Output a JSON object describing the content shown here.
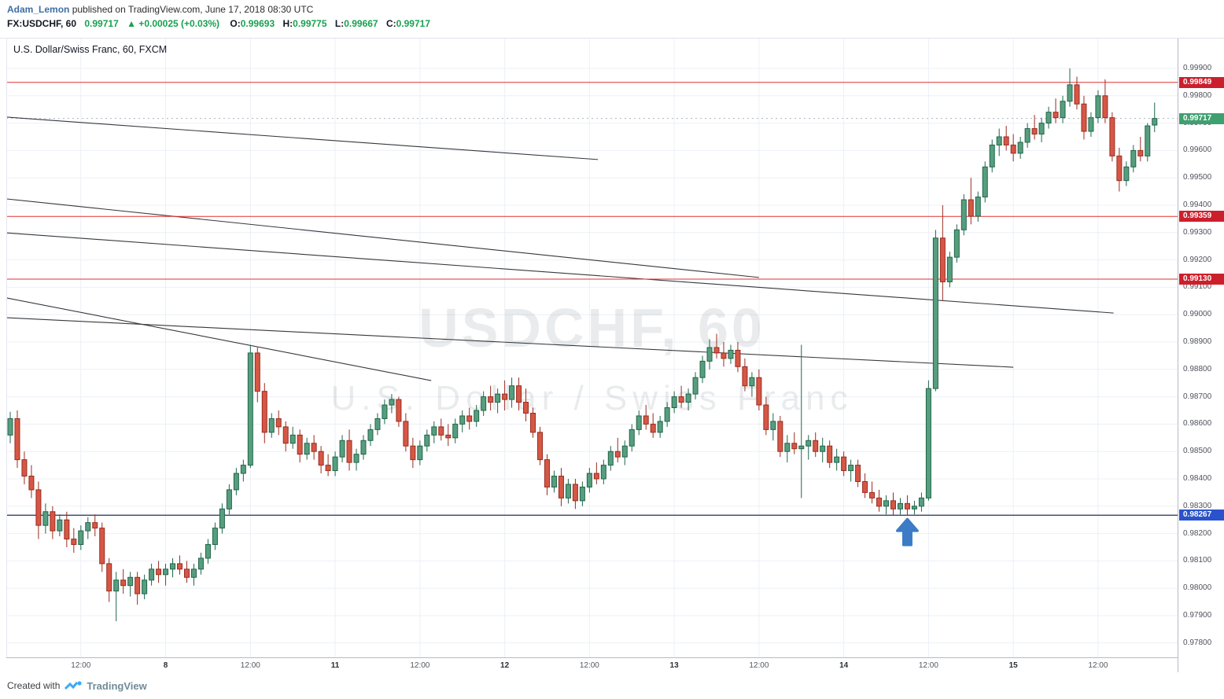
{
  "header": {
    "author": "Adam_Lemon",
    "published_text": " published on TradingView.com, June 17, 2018 08:30 UTC",
    "symbol": "FX:USDCHF, 60",
    "last_price": "0.99717",
    "change_text": "▲ +0.00025 (+0.03%)",
    "ohlc": {
      "o_label": "O:",
      "o": "0.99693",
      "h_label": "H:",
      "h": "0.99775",
      "l_label": "L:",
      "l": "0.99667",
      "c_label": "C:",
      "c": "0.99717"
    }
  },
  "legend": "U.S. Dollar/Swiss Franc, 60, FXCM",
  "watermark": {
    "line1": "USDCHF, 60",
    "line2": "U.S. Dollar / Swiss Franc"
  },
  "footer": {
    "created_with": "Created with",
    "brand": "TradingView"
  },
  "colors": {
    "up_body": "#579e7e",
    "up_border": "#20654a",
    "down_body": "#d65745",
    "down_border": "#992c20",
    "grid": "#ecf0f6",
    "trendline": "#37383c",
    "level_red": "#e03232",
    "level_blue": "#1d2f5f",
    "label_red_bg": "#cc1f2c",
    "label_blue_bg": "#2a52cc",
    "label_green_bg": "#3fa06f",
    "arrow": "#3c7bc6",
    "watermark": "rgba(100,110,122,0.14)",
    "green_text": "#18a150",
    "link_blue": "#3b6ea5"
  },
  "chart_data": {
    "type": "candlestick",
    "title": "U.S. Dollar/Swiss Franc, 60, FXCM",
    "symbol": "USDCHF",
    "interval": "60",
    "exchange": "FXCM",
    "price_axis": {
      "top": 0.999,
      "bottom": 0.978,
      "step": 0.001
    },
    "time_labels": [
      {
        "text": "12:00",
        "index": 10,
        "date": false
      },
      {
        "text": "8",
        "index": 22,
        "date": true
      },
      {
        "text": "12:00",
        "index": 34,
        "date": false
      },
      {
        "text": "11",
        "index": 46,
        "date": true
      },
      {
        "text": "12:00",
        "index": 58,
        "date": false
      },
      {
        "text": "12",
        "index": 70,
        "date": true
      },
      {
        "text": "12:00",
        "index": 82,
        "date": false
      },
      {
        "text": "13",
        "index": 94,
        "date": true
      },
      {
        "text": "12:00",
        "index": 106,
        "date": false
      },
      {
        "text": "14",
        "index": 118,
        "date": true
      },
      {
        "text": "12:00",
        "index": 130,
        "date": false
      },
      {
        "text": "15",
        "index": 142,
        "date": true
      },
      {
        "text": "12:00",
        "index": 154,
        "date": false
      }
    ],
    "levels": [
      {
        "price": 0.99849,
        "style": "red"
      },
      {
        "price": 0.99359,
        "style": "red"
      },
      {
        "price": 0.9913,
        "style": "red"
      },
      {
        "price": 0.98267,
        "style": "blue"
      }
    ],
    "last_price": 0.99717,
    "trendlines": [
      [
        -0.5,
        0.99722,
        83.2,
        0.99567
      ],
      [
        -0.5,
        0.99423,
        106.0,
        0.99136
      ],
      [
        -0.5,
        0.99299,
        156.2,
        0.99006
      ],
      [
        -0.5,
        0.99061,
        59.6,
        0.98759
      ],
      [
        -0.5,
        0.98989,
        142.0,
        0.98808
      ]
    ],
    "arrow": {
      "index": 127,
      "tip_price": 0.98253
    },
    "candles": [
      [
        0.9856,
        0.98645,
        0.9853,
        0.9862
      ],
      [
        0.9862,
        0.9865,
        0.9844,
        0.9847
      ],
      [
        0.9847,
        0.985,
        0.9838,
        0.9841
      ],
      [
        0.9841,
        0.9845,
        0.9833,
        0.9836
      ],
      [
        0.9836,
        0.9839,
        0.9818,
        0.9823
      ],
      [
        0.9823,
        0.9831,
        0.982,
        0.9828
      ],
      [
        0.9828,
        0.983,
        0.9818,
        0.9821
      ],
      [
        0.9821,
        0.9827,
        0.9819,
        0.9825
      ],
      [
        0.9825,
        0.9828,
        0.9815,
        0.9818
      ],
      [
        0.9818,
        0.9822,
        0.9813,
        0.9816
      ],
      [
        0.9816,
        0.9823,
        0.9814,
        0.9821
      ],
      [
        0.9821,
        0.9826,
        0.9818,
        0.9824
      ],
      [
        0.9824,
        0.9827,
        0.9819,
        0.9822
      ],
      [
        0.9822,
        0.9824,
        0.9806,
        0.9809
      ],
      [
        0.9809,
        0.9811,
        0.9795,
        0.9799
      ],
      [
        0.9799,
        0.9806,
        0.9788,
        0.9803
      ],
      [
        0.9803,
        0.9807,
        0.9798,
        0.9801
      ],
      [
        0.9801,
        0.9806,
        0.9797,
        0.9804
      ],
      [
        0.9804,
        0.9806,
        0.9794,
        0.9798
      ],
      [
        0.9798,
        0.9805,
        0.9796,
        0.9803
      ],
      [
        0.9803,
        0.9809,
        0.9801,
        0.9807
      ],
      [
        0.9807,
        0.981,
        0.9802,
        0.9805
      ],
      [
        0.9805,
        0.9809,
        0.9801,
        0.9807
      ],
      [
        0.9807,
        0.9811,
        0.9804,
        0.9809
      ],
      [
        0.9809,
        0.9812,
        0.9805,
        0.9807
      ],
      [
        0.9807,
        0.981,
        0.9802,
        0.9804
      ],
      [
        0.9804,
        0.9809,
        0.9801,
        0.9807
      ],
      [
        0.9807,
        0.9813,
        0.9805,
        0.9811
      ],
      [
        0.9811,
        0.9818,
        0.9809,
        0.9816
      ],
      [
        0.9816,
        0.9824,
        0.9814,
        0.9822
      ],
      [
        0.9822,
        0.9831,
        0.982,
        0.9829
      ],
      [
        0.9829,
        0.9838,
        0.9827,
        0.9836
      ],
      [
        0.9836,
        0.9844,
        0.9834,
        0.9842
      ],
      [
        0.9842,
        0.9847,
        0.9839,
        0.9845
      ],
      [
        0.9845,
        0.9889,
        0.9844,
        0.9886
      ],
      [
        0.9886,
        0.9888,
        0.9868,
        0.9872
      ],
      [
        0.9872,
        0.9875,
        0.9853,
        0.9857
      ],
      [
        0.9857,
        0.9864,
        0.9855,
        0.9862
      ],
      [
        0.9862,
        0.9865,
        0.9856,
        0.9859
      ],
      [
        0.9859,
        0.9861,
        0.985,
        0.9853
      ],
      [
        0.9853,
        0.9859,
        0.9851,
        0.9856
      ],
      [
        0.9856,
        0.9858,
        0.9846,
        0.9849
      ],
      [
        0.9849,
        0.9855,
        0.9847,
        0.9853
      ],
      [
        0.9853,
        0.9856,
        0.9847,
        0.985
      ],
      [
        0.985,
        0.9852,
        0.9842,
        0.9845
      ],
      [
        0.9845,
        0.9849,
        0.9841,
        0.9843
      ],
      [
        0.9843,
        0.985,
        0.9841,
        0.9848
      ],
      [
        0.9848,
        0.9856,
        0.9846,
        0.9854
      ],
      [
        0.9854,
        0.9858,
        0.9843,
        0.9846
      ],
      [
        0.9846,
        0.9851,
        0.9843,
        0.9849
      ],
      [
        0.9849,
        0.9856,
        0.9847,
        0.9854
      ],
      [
        0.9854,
        0.986,
        0.9852,
        0.9858
      ],
      [
        0.9858,
        0.9864,
        0.9856,
        0.9862
      ],
      [
        0.9862,
        0.9869,
        0.986,
        0.9867
      ],
      [
        0.9867,
        0.9871,
        0.9864,
        0.9869
      ],
      [
        0.9869,
        0.987,
        0.9859,
        0.9861
      ],
      [
        0.9861,
        0.9864,
        0.985,
        0.9852
      ],
      [
        0.9852,
        0.9855,
        0.9844,
        0.9847
      ],
      [
        0.9847,
        0.9854,
        0.9845,
        0.9852
      ],
      [
        0.9852,
        0.9858,
        0.985,
        0.9856
      ],
      [
        0.9856,
        0.9861,
        0.9853,
        0.9859
      ],
      [
        0.9859,
        0.9862,
        0.9854,
        0.9856
      ],
      [
        0.9856,
        0.986,
        0.9852,
        0.9855
      ],
      [
        0.9855,
        0.9862,
        0.9853,
        0.986
      ],
      [
        0.986,
        0.9865,
        0.9857,
        0.9863
      ],
      [
        0.9863,
        0.9866,
        0.9858,
        0.9861
      ],
      [
        0.9861,
        0.9867,
        0.9859,
        0.9865
      ],
      [
        0.9865,
        0.9872,
        0.9863,
        0.987
      ],
      [
        0.987,
        0.9874,
        0.9865,
        0.9868
      ],
      [
        0.9868,
        0.9873,
        0.9864,
        0.9871
      ],
      [
        0.9871,
        0.9876,
        0.9865,
        0.9869
      ],
      [
        0.9869,
        0.9877,
        0.9866,
        0.9874
      ],
      [
        0.9874,
        0.9877,
        0.9865,
        0.9868
      ],
      [
        0.9868,
        0.9873,
        0.9861,
        0.9864
      ],
      [
        0.9864,
        0.9866,
        0.9855,
        0.9857
      ],
      [
        0.9857,
        0.9859,
        0.9845,
        0.9847
      ],
      [
        0.9847,
        0.9849,
        0.9834,
        0.9837
      ],
      [
        0.9837,
        0.9843,
        0.9835,
        0.9841
      ],
      [
        0.9841,
        0.9844,
        0.983,
        0.9833
      ],
      [
        0.9833,
        0.984,
        0.9831,
        0.9838
      ],
      [
        0.9838,
        0.984,
        0.9829,
        0.9832
      ],
      [
        0.9832,
        0.9839,
        0.983,
        0.9837
      ],
      [
        0.9837,
        0.9844,
        0.9835,
        0.9842
      ],
      [
        0.9842,
        0.9846,
        0.9838,
        0.984
      ],
      [
        0.984,
        0.9847,
        0.9838,
        0.9845
      ],
      [
        0.9845,
        0.9852,
        0.9843,
        0.985
      ],
      [
        0.985,
        0.9855,
        0.9846,
        0.9848
      ],
      [
        0.9848,
        0.9854,
        0.9845,
        0.9852
      ],
      [
        0.9852,
        0.986,
        0.985,
        0.9858
      ],
      [
        0.9858,
        0.9865,
        0.9856,
        0.9863
      ],
      [
        0.9863,
        0.9867,
        0.9858,
        0.986
      ],
      [
        0.986,
        0.9864,
        0.9855,
        0.9857
      ],
      [
        0.9857,
        0.9863,
        0.9855,
        0.9861
      ],
      [
        0.9861,
        0.9868,
        0.9859,
        0.9866
      ],
      [
        0.9866,
        0.9872,
        0.9864,
        0.987
      ],
      [
        0.987,
        0.9874,
        0.9866,
        0.9868
      ],
      [
        0.9868,
        0.9873,
        0.9865,
        0.9871
      ],
      [
        0.9871,
        0.9879,
        0.9869,
        0.9877
      ],
      [
        0.9877,
        0.9885,
        0.9875,
        0.9883
      ],
      [
        0.9883,
        0.9891,
        0.988,
        0.9888
      ],
      [
        0.9888,
        0.9893,
        0.9884,
        0.9886
      ],
      [
        0.9886,
        0.989,
        0.9881,
        0.9884
      ],
      [
        0.9884,
        0.9889,
        0.9882,
        0.9887
      ],
      [
        0.9887,
        0.989,
        0.9879,
        0.9881
      ],
      [
        0.9881,
        0.9884,
        0.9872,
        0.9874
      ],
      [
        0.9874,
        0.9879,
        0.987,
        0.9877
      ],
      [
        0.9877,
        0.988,
        0.9865,
        0.9867
      ],
      [
        0.9867,
        0.987,
        0.9856,
        0.9858
      ],
      [
        0.9858,
        0.9864,
        0.9854,
        0.9861
      ],
      [
        0.9861,
        0.9863,
        0.9848,
        0.985
      ],
      [
        0.985,
        0.9856,
        0.9846,
        0.9853
      ],
      [
        0.9853,
        0.9857,
        0.9849,
        0.9851
      ],
      [
        0.9851,
        0.9889,
        0.9833,
        0.9852
      ],
      [
        0.9852,
        0.9856,
        0.9847,
        0.9854
      ],
      [
        0.9854,
        0.9857,
        0.9848,
        0.985
      ],
      [
        0.985,
        0.9855,
        0.9846,
        0.9852
      ],
      [
        0.9852,
        0.9854,
        0.9844,
        0.9846
      ],
      [
        0.9846,
        0.9851,
        0.9843,
        0.9848
      ],
      [
        0.9848,
        0.985,
        0.9841,
        0.9843
      ],
      [
        0.9843,
        0.9847,
        0.9839,
        0.9845
      ],
      [
        0.9845,
        0.9847,
        0.9837,
        0.9839
      ],
      [
        0.9839,
        0.9842,
        0.9833,
        0.9835
      ],
      [
        0.9835,
        0.9839,
        0.9831,
        0.9833
      ],
      [
        0.9833,
        0.9836,
        0.9828,
        0.983
      ],
      [
        0.983,
        0.9834,
        0.9827,
        0.9832
      ],
      [
        0.9832,
        0.9835,
        0.98267,
        0.9829
      ],
      [
        0.9829,
        0.9833,
        0.9827,
        0.9831
      ],
      [
        0.9831,
        0.9834,
        0.98267,
        0.9829
      ],
      [
        0.9829,
        0.9832,
        0.9827,
        0.983
      ],
      [
        0.983,
        0.9835,
        0.9828,
        0.9833
      ],
      [
        0.9833,
        0.9876,
        0.9832,
        0.9873
      ],
      [
        0.9873,
        0.9931,
        0.9872,
        0.9928
      ],
      [
        0.9928,
        0.994,
        0.9905,
        0.9912
      ],
      [
        0.9912,
        0.9923,
        0.991,
        0.9921
      ],
      [
        0.9921,
        0.9933,
        0.9919,
        0.9931
      ],
      [
        0.9931,
        0.9944,
        0.9929,
        0.9942
      ],
      [
        0.9942,
        0.995,
        0.9933,
        0.9936
      ],
      [
        0.9936,
        0.9945,
        0.9934,
        0.9943
      ],
      [
        0.9943,
        0.9956,
        0.9941,
        0.9954
      ],
      [
        0.9954,
        0.9964,
        0.9952,
        0.9962
      ],
      [
        0.9962,
        0.9968,
        0.9958,
        0.9965
      ],
      [
        0.9965,
        0.9969,
        0.996,
        0.9962
      ],
      [
        0.9962,
        0.9966,
        0.9956,
        0.9959
      ],
      [
        0.9959,
        0.9965,
        0.9957,
        0.9963
      ],
      [
        0.9963,
        0.997,
        0.9961,
        0.9968
      ],
      [
        0.9968,
        0.9973,
        0.9964,
        0.9966
      ],
      [
        0.9966,
        0.9972,
        0.9963,
        0.997
      ],
      [
        0.997,
        0.9976,
        0.9968,
        0.9974
      ],
      [
        0.9974,
        0.9979,
        0.997,
        0.9972
      ],
      [
        0.9972,
        0.998,
        0.997,
        0.9978
      ],
      [
        0.9978,
        0.999,
        0.9976,
        0.9984
      ],
      [
        0.9984,
        0.9987,
        0.9975,
        0.9977
      ],
      [
        0.9977,
        0.998,
        0.9964,
        0.9967
      ],
      [
        0.9967,
        0.9974,
        0.9965,
        0.9972
      ],
      [
        0.9972,
        0.9982,
        0.997,
        0.998
      ],
      [
        0.998,
        0.9986,
        0.997,
        0.9972
      ],
      [
        0.9972,
        0.9974,
        0.9956,
        0.9958
      ],
      [
        0.9958,
        0.9961,
        0.9945,
        0.9949
      ],
      [
        0.9949,
        0.9956,
        0.9947,
        0.9954
      ],
      [
        0.9954,
        0.9962,
        0.9952,
        0.996
      ],
      [
        0.996,
        0.9965,
        0.9956,
        0.9958
      ],
      [
        0.9958,
        0.997,
        0.9956,
        0.9969
      ],
      [
        0.99693,
        0.99775,
        0.99667,
        0.99717
      ]
    ]
  }
}
